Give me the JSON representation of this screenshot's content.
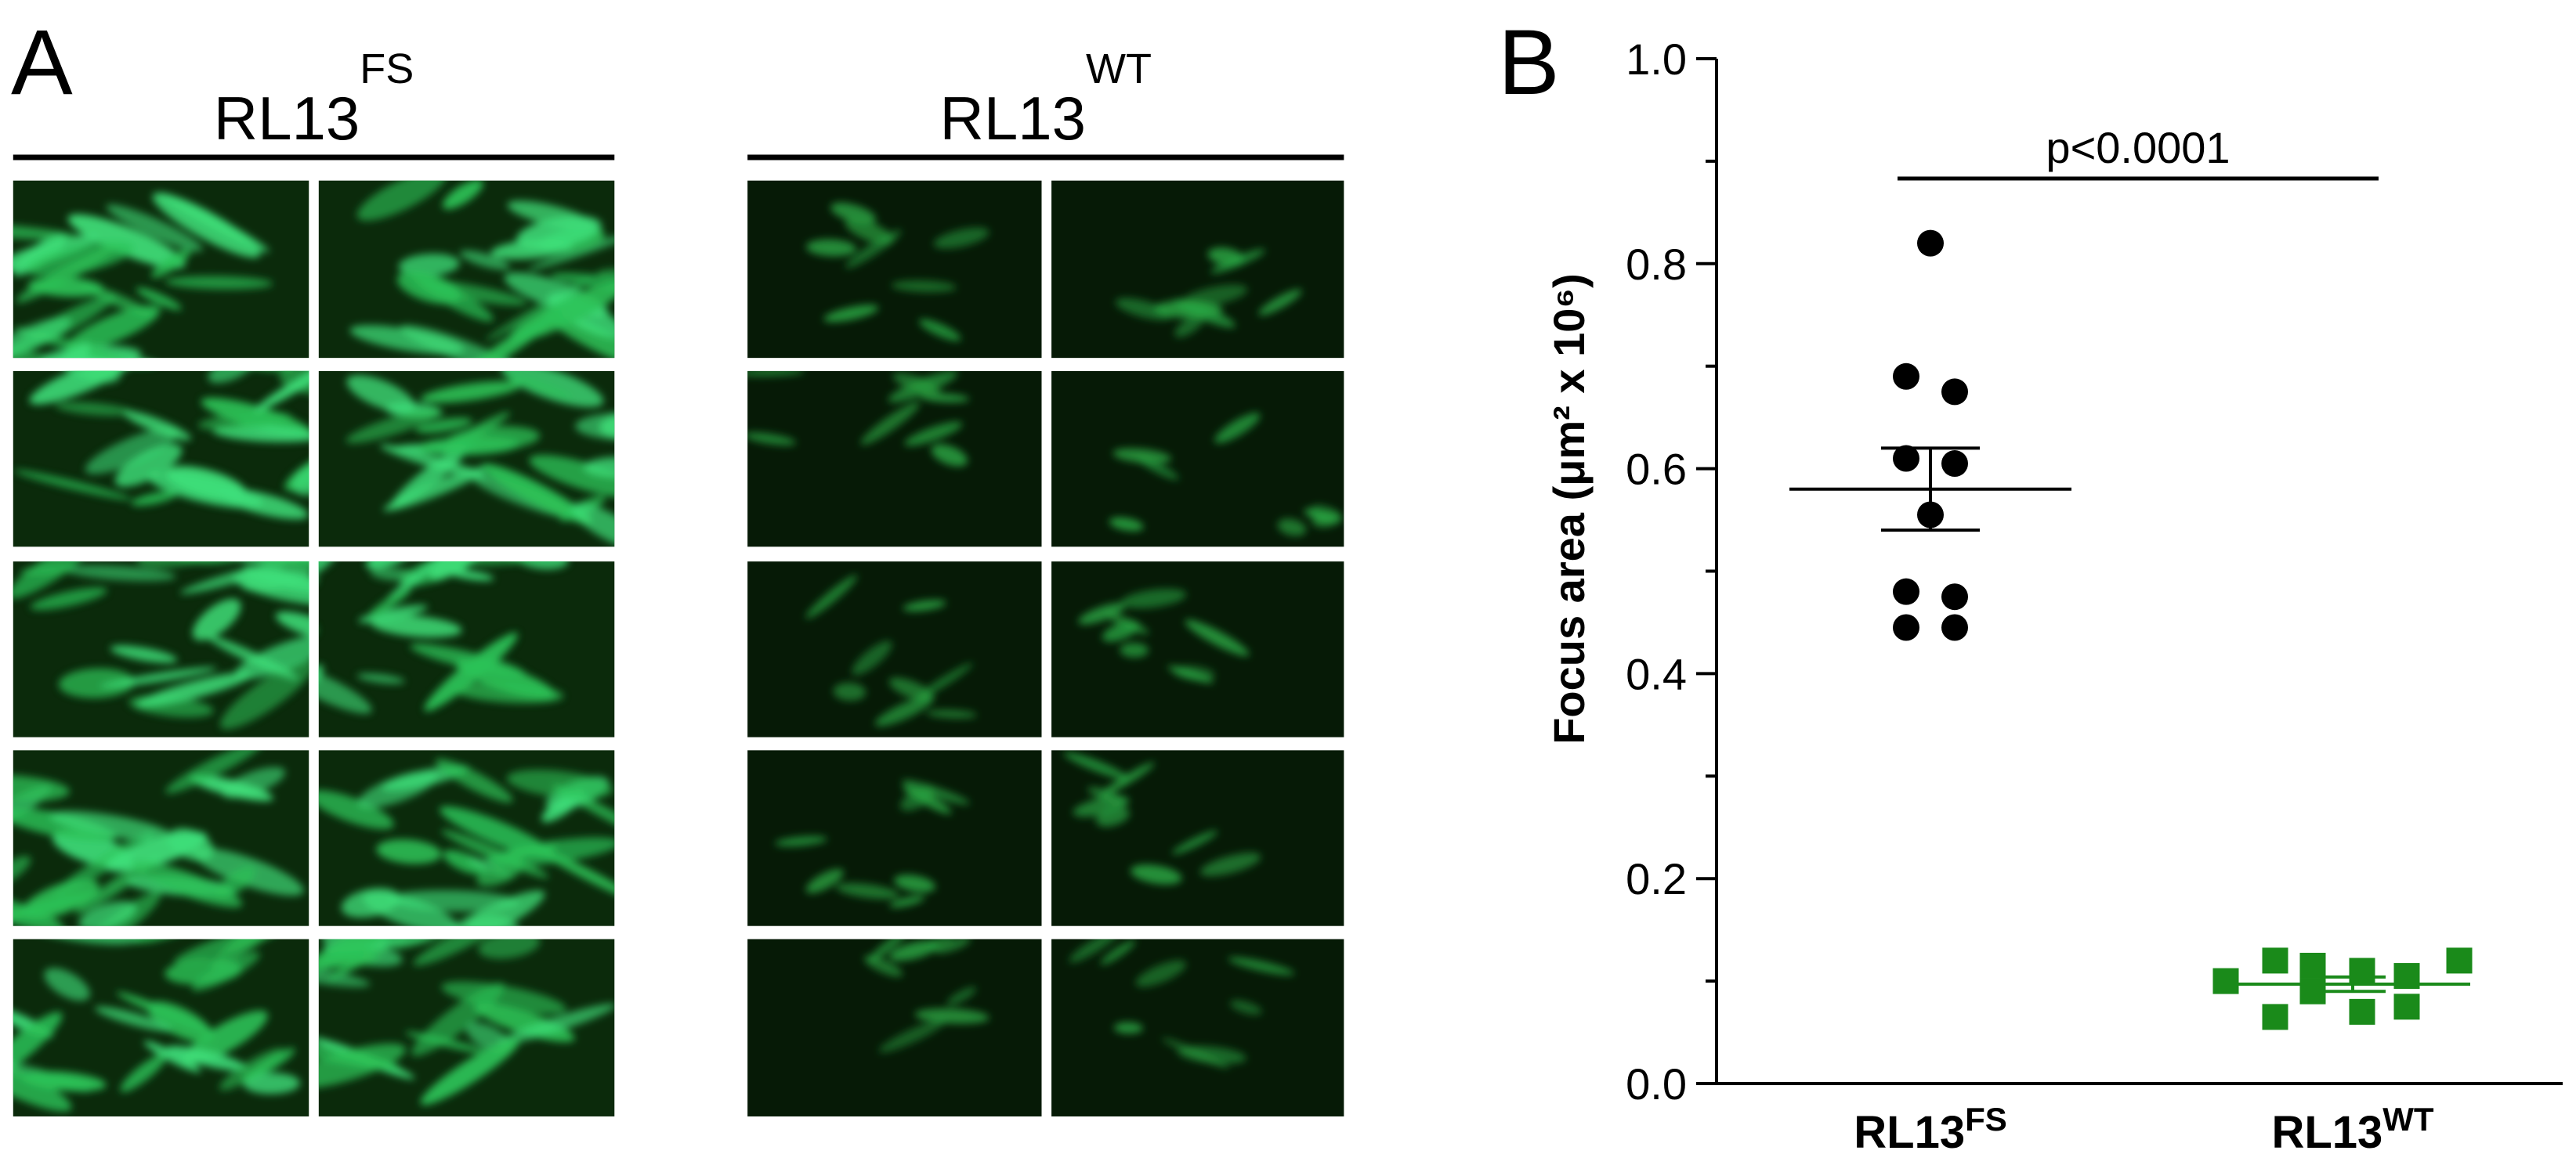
{
  "panel_labels": {
    "a": "A",
    "b": "B"
  },
  "image_groups": [
    {
      "name": "RL13",
      "superscript": "FS"
    },
    {
      "name": "RL13",
      "superscript": "WT"
    }
  ],
  "chart_data": {
    "type": "scatter",
    "ylabel": "Focus area (μm² x 10⁶)",
    "ylim": [
      0,
      1
    ],
    "yticks": [
      {
        "value": 0,
        "label": "0.0"
      },
      0.2,
      0.4,
      0.6,
      0.8,
      {
        "value": 1,
        "label": "1.0"
      }
    ],
    "minor_yticks": [
      0.1,
      0.3,
      0.5,
      0.7,
      0.9
    ],
    "annotation": "p<0.0001",
    "series": [
      {
        "name": "RL13",
        "superscript": "FS",
        "color": "#000000",
        "marker": "circle",
        "values": [
          0.82,
          0.69,
          0.675,
          0.61,
          0.605,
          0.555,
          0.48,
          0.475,
          0.445,
          0.445
        ],
        "mean": 0.58,
        "sem": 0.04
      },
      {
        "name": "RL13",
        "superscript": "WT",
        "color": "#1a8a1a",
        "marker": "square",
        "values": [
          0.1,
          0.12,
          0.065,
          0.09,
          0.115,
          0.11,
          0.07,
          0.105,
          0.075,
          0.12
        ],
        "mean": 0.097,
        "sem": 0.007
      }
    ]
  }
}
